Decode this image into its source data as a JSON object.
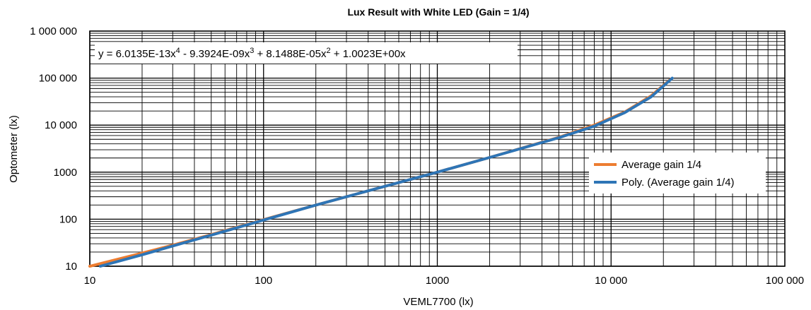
{
  "chart_data": {
    "type": "line",
    "title": "Lux Result with White LED (Gain = 1/4)",
    "xlabel": "VEML7700 (lx)",
    "ylabel": "Optometer (lx)",
    "xscale": "log",
    "yscale": "log",
    "xlim": [
      10,
      100000
    ],
    "ylim": [
      10,
      1000000
    ],
    "x_ticks": [
      10,
      100,
      1000,
      10000,
      100000
    ],
    "x_tick_labels": [
      "10",
      "100",
      "1000",
      "10 000",
      "100 000"
    ],
    "y_ticks": [
      10,
      100,
      1000,
      10000,
      100000,
      1000000
    ],
    "y_tick_labels": [
      "10",
      "100",
      "1000",
      "10 000",
      "100 000",
      "1 000 000"
    ],
    "grid": true,
    "legend_position": "right",
    "equation": {
      "prefix": "y = 6.0135E-13x",
      "sup1": "4",
      "part2": " - 9.3924E-09x",
      "sup2": "3",
      "part3": " + 8.1488E-05x",
      "sup3": "2",
      "part4": " + 1.0023E+00x"
    },
    "series": [
      {
        "name": "Average gain 1/4",
        "color": "#ED7D31",
        "x": [
          10,
          20,
          30,
          50,
          100,
          200,
          500,
          1000,
          2000,
          5000,
          8000,
          12000,
          17000,
          22000
        ],
        "y": [
          10,
          19,
          28,
          47,
          98,
          200,
          500,
          1000,
          2050,
          5500,
          10000,
          19000,
          42000,
          95000
        ]
      },
      {
        "name": "Poly. (Average gain 1/4)",
        "color": "#2E75B6",
        "x": [
          11.5,
          20,
          30,
          50,
          100,
          200,
          500,
          1000,
          2000,
          5000,
          8000,
          12000,
          17000,
          22500
        ],
        "y": [
          10,
          17.5,
          27,
          46,
          96,
          200,
          500,
          1000,
          2050,
          5400,
          9500,
          18500,
          40000,
          100000
        ]
      }
    ]
  }
}
